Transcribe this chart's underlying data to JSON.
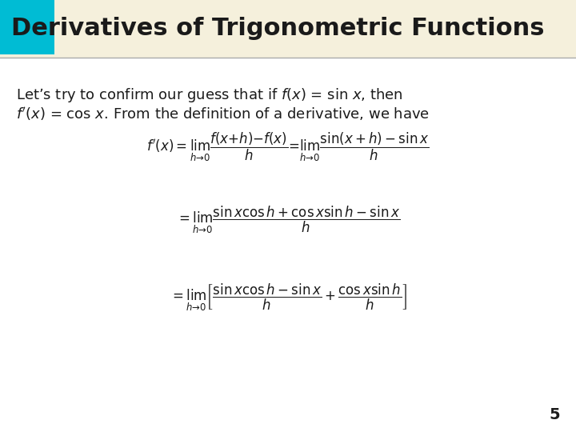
{
  "title": "Derivatives of Trigonometric Functions",
  "title_color": "#1a1a1a",
  "title_bg_color": "#f5f0dc",
  "title_square_color": "#00bcd4",
  "body_bg_color": "#ffffff",
  "page_number": "5",
  "fig_width": 7.2,
  "fig_height": 5.4,
  "dpi": 100
}
